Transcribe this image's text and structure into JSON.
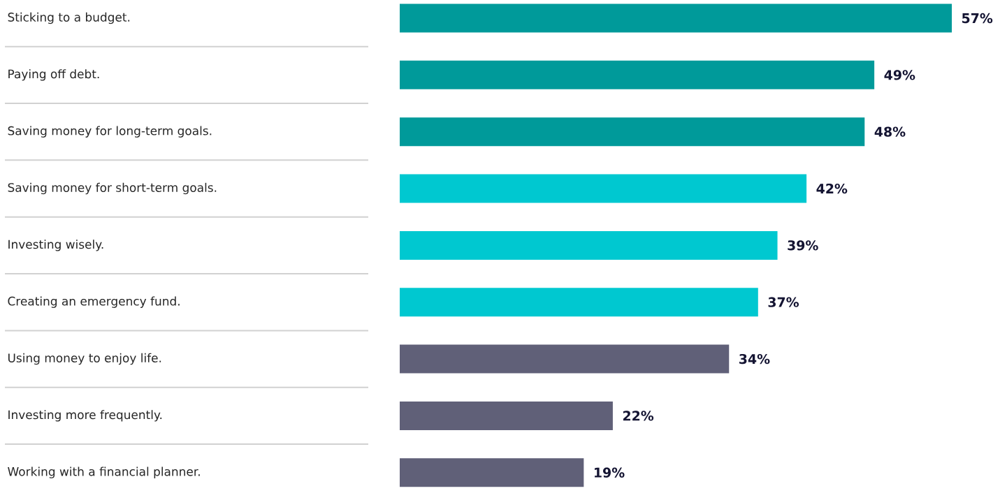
{
  "chart_data": {
    "type": "bar",
    "orientation": "horizontal",
    "categories": [
      "Sticking to a budget.",
      "Paying off debt.",
      "Saving money for long-term goals.",
      "Saving money for short-term goals.",
      "Investing wisely.",
      "Creating an emergency fund.",
      "Using money to enjoy life.",
      "Investing more frequently.",
      "Working with a financial planner."
    ],
    "values": [
      57,
      49,
      48,
      42,
      39,
      37,
      34,
      22,
      19
    ],
    "value_labels": [
      "57%",
      "49%",
      "48%",
      "42%",
      "39%",
      "37%",
      "34%",
      "22%",
      "19%"
    ],
    "colors": [
      "#009a9a",
      "#009a9a",
      "#009a9a",
      "#00c8d0",
      "#00c8d0",
      "#00c8d0",
      "#606078",
      "#606078",
      "#606078"
    ]
  }
}
